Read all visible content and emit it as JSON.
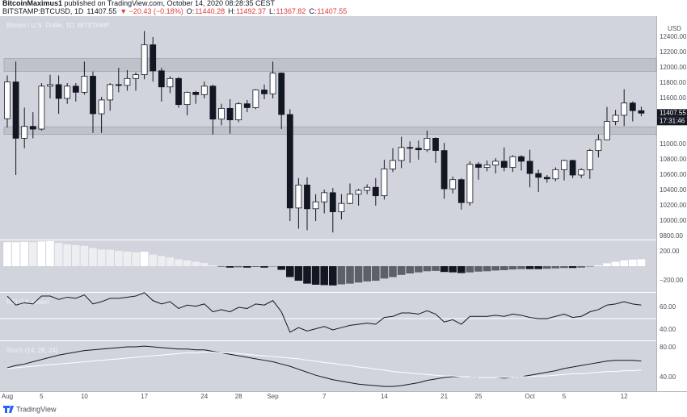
{
  "header": {
    "publisher": "BitcoinMaximus1",
    "published": " published on TradingView.com, October 14, 2020 08:28:35 CEST",
    "symbol": "BITSTAMP:BTCUSD, 1D",
    "price": "11407.55",
    "change": "▼ −20.43 (−0.18%)",
    "ohlc": [
      {
        "label": "O:",
        "value": "11440.28"
      },
      {
        "label": "H:",
        "value": "11492.37"
      },
      {
        "label": "L:",
        "value": "11367.82"
      },
      {
        "label": "C:",
        "value": "11407.55"
      }
    ]
  },
  "chart_data": [
    {
      "type": "candlestick",
      "title": "Bitcoin / U.S. Dollar, 1D, BITSTAMP",
      "axis_unit": "USD",
      "categories": [
        "Aug",
        null,
        null,
        null,
        "5",
        null,
        null,
        null,
        null,
        "10",
        null,
        null,
        null,
        null,
        null,
        null,
        "17",
        null,
        null,
        null,
        null,
        null,
        null,
        "24",
        null,
        null,
        null,
        "28",
        null,
        null,
        null,
        "Sep",
        null,
        null,
        null,
        null,
        null,
        "7",
        null,
        null,
        null,
        null,
        null,
        null,
        "14",
        null,
        null,
        null,
        null,
        null,
        null,
        "21",
        null,
        null,
        null,
        "25",
        null,
        null,
        null,
        null,
        null,
        "Oct",
        null,
        null,
        null,
        "5",
        null,
        null,
        null,
        null,
        null,
        null,
        "12",
        null,
        null
      ],
      "open": [
        11335,
        11815,
        11080,
        11235,
        11200,
        11760,
        11780,
        11600,
        11760,
        11680,
        11890,
        11400,
        11580,
        11780,
        11770,
        11860,
        11910,
        12300,
        11960,
        11750,
        11860,
        11520,
        11680,
        11650,
        11760,
        11330,
        11470,
        11320,
        11530,
        11480,
        11710,
        11660,
        11930,
        11390,
        10170,
        10470,
        10160,
        10250,
        10370,
        10120,
        10230,
        10350,
        10400,
        10440,
        10330,
        10680,
        10790,
        10960,
        10950,
        10930,
        11080,
        10920,
        10420,
        10540,
        10240,
        10740,
        10700,
        10730,
        10780,
        10700,
        10840,
        10780,
        10620,
        10570,
        10550,
        10670,
        10790,
        10600,
        10670,
        10920,
        11060,
        11300,
        11380,
        11540,
        11440.28
      ],
      "high": [
        11900,
        12080,
        11480,
        11420,
        11800,
        11910,
        11900,
        11800,
        11800,
        12080,
        11950,
        11620,
        11800,
        12000,
        11970,
        11940,
        12480,
        12400,
        12000,
        11890,
        11880,
        11690,
        11700,
        11820,
        11780,
        11530,
        11590,
        11550,
        11580,
        11720,
        11780,
        12080,
        11940,
        11460,
        10560,
        10570,
        10350,
        10410,
        10430,
        10350,
        10490,
        10420,
        10480,
        10560,
        10800,
        10950,
        11100,
        11040,
        11050,
        11180,
        11090,
        11020,
        10580,
        10560,
        10780,
        10770,
        10790,
        10820,
        10960,
        10860,
        10860,
        10930,
        10670,
        10600,
        10700,
        10800,
        10800,
        10690,
        10940,
        11130,
        11490,
        11450,
        11720,
        11560,
        11492.37
      ],
      "low": [
        11220,
        10600,
        10950,
        11080,
        11180,
        11600,
        11400,
        11530,
        11560,
        11650,
        11150,
        11150,
        11440,
        11680,
        11700,
        11700,
        11850,
        11820,
        11560,
        11670,
        11480,
        11380,
        11530,
        11600,
        11130,
        11250,
        11140,
        11290,
        11420,
        11460,
        11590,
        11600,
        11200,
        10000,
        9900,
        9880,
        10000,
        10100,
        9850,
        10020,
        10220,
        10200,
        10350,
        10200,
        10280,
        10640,
        10690,
        10760,
        10800,
        10900,
        10760,
        10290,
        10360,
        10150,
        10200,
        10540,
        10650,
        10620,
        10650,
        10640,
        10660,
        10440,
        10380,
        10500,
        10520,
        10530,
        10560,
        10560,
        10550,
        10830,
        11060,
        11250,
        11240,
        11300,
        11367.82
      ],
      "close": [
        11815,
        11080,
        11235,
        11200,
        11760,
        11780,
        11600,
        11760,
        11680,
        11890,
        11400,
        11580,
        11780,
        11770,
        11860,
        11910,
        12300,
        11960,
        11750,
        11860,
        11520,
        11680,
        11650,
        11760,
        11330,
        11470,
        11320,
        11530,
        11480,
        11710,
        11660,
        11930,
        11390,
        10170,
        10470,
        10160,
        10250,
        10370,
        10120,
        10230,
        10350,
        10400,
        10440,
        10330,
        10680,
        10790,
        10960,
        10950,
        10930,
        11080,
        10920,
        10420,
        10540,
        10240,
        10740,
        10700,
        10730,
        10780,
        10700,
        10840,
        10780,
        10620,
        10570,
        10550,
        10670,
        10790,
        10600,
        10670,
        10920,
        11060,
        11300,
        11380,
        11540,
        11440.28,
        11407.55
      ],
      "up_color": "#ffffff",
      "down_color": "#131722",
      "zones": [
        [
          11950,
          12120
        ],
        [
          11130,
          11230
        ]
      ],
      "last_price_label": "11407.55",
      "countdown": "17:31:46",
      "ylim": [
        9758,
        12674
      ],
      "yticks": [
        {
          "value": 9800,
          "label": "9800.00"
        },
        {
          "value": 10000,
          "label": "10000.00"
        },
        {
          "value": 10200,
          "label": "10200.00"
        },
        {
          "value": 10400,
          "label": "10400.00"
        },
        {
          "value": 10600,
          "label": "10600.00"
        },
        {
          "value": 10800,
          "label": "10800.00"
        },
        {
          "value": 11000,
          "label": "11000.00"
        },
        {
          "value": 11600,
          "label": "11600.00"
        },
        {
          "value": 11800,
          "label": "11800.00"
        },
        {
          "value": 12000,
          "label": "12000.00"
        },
        {
          "value": 12200,
          "label": "12200.00"
        },
        {
          "value": 12400,
          "label": "12400.00"
        }
      ]
    },
    {
      "type": "bar",
      "values": [
        330,
        330,
        335,
        330,
        340,
        345,
        320,
        300,
        290,
        280,
        250,
        230,
        225,
        210,
        200,
        190,
        200,
        160,
        140,
        120,
        95,
        80,
        60,
        45,
        10,
        -5,
        -20,
        -15,
        -20,
        -10,
        -20,
        -5,
        -50,
        -150,
        -200,
        -240,
        -255,
        -260,
        -265,
        -250,
        -240,
        -225,
        -210,
        -200,
        -170,
        -150,
        -120,
        -100,
        -85,
        -70,
        -65,
        -80,
        -85,
        -95,
        -85,
        -75,
        -70,
        -60,
        -55,
        -45,
        -40,
        -40,
        -40,
        -35,
        -30,
        -25,
        -25,
        -20,
        -5,
        10,
        40,
        60,
        80,
        90,
        95
      ],
      "ylim": [
        -355,
        355
      ],
      "yticks": [
        {
          "value": 200,
          "label": "200.00"
        },
        {
          "value": -200,
          "label": "−200.00"
        }
      ]
    },
    {
      "type": "line",
      "title": "RSI (14, close)",
      "color": "#131722",
      "levels": [
        50
      ],
      "values": [
        70,
        62,
        64,
        63,
        70,
        70,
        67,
        69,
        68,
        71,
        63,
        65,
        68,
        68,
        69,
        70,
        73,
        66,
        63,
        65,
        59,
        62,
        61,
        63,
        56,
        58,
        56,
        60,
        59,
        63,
        62,
        66,
        56,
        38,
        42,
        39,
        41,
        43,
        40,
        42,
        44,
        45,
        46,
        45,
        51,
        52,
        55,
        55,
        54,
        57,
        54,
        47,
        49,
        45,
        52,
        52,
        52,
        53,
        52,
        54,
        53,
        51,
        50,
        50,
        52,
        54,
        51,
        52,
        56,
        58,
        62,
        63,
        65,
        63,
        62
      ],
      "ylim": [
        30.7,
        72.9
      ],
      "yticks": [
        {
          "value": 60,
          "label": "60.00"
        },
        {
          "value": 40,
          "label": "40.00"
        }
      ]
    },
    {
      "type": "line",
      "title": "Stoch (14, 28, 24)",
      "series": [
        {
          "color": "#131722",
          "values": [
            53,
            56,
            58,
            61,
            64,
            67,
            70,
            72,
            74,
            76,
            77,
            78,
            79,
            80,
            81,
            81,
            82,
            81,
            80,
            79,
            78,
            78,
            77,
            77,
            75,
            73,
            71,
            69,
            67,
            65,
            63,
            61,
            58,
            55,
            51,
            47,
            43,
            40,
            37,
            35,
            33,
            31,
            30,
            29,
            28,
            28,
            29,
            31,
            33,
            36,
            38,
            40,
            41,
            41,
            41,
            40,
            40,
            40,
            39,
            40,
            41,
            43,
            45,
            47,
            49,
            52,
            54,
            56,
            58,
            60,
            62,
            63,
            63,
            63,
            62
          ]
        },
        {
          "color": "#ffffff",
          "values": [
            52,
            53,
            54,
            55,
            56,
            57,
            58,
            59,
            60,
            61,
            62,
            63,
            64,
            65,
            66,
            67,
            68,
            69,
            70,
            71,
            72,
            73,
            73,
            74,
            74,
            73,
            73,
            72,
            71,
            70,
            69,
            68,
            67,
            66,
            65,
            63,
            62,
            60,
            59,
            57,
            56,
            54,
            53,
            51,
            50,
            48,
            47,
            46,
            45,
            44,
            43,
            42,
            42,
            41,
            41,
            40,
            40,
            40,
            40,
            40,
            41,
            41,
            42,
            42,
            43,
            44,
            45,
            45,
            46,
            47,
            48,
            48,
            49,
            49,
            50
          ]
        }
      ],
      "ylim": [
        21.6,
        88.6
      ],
      "yticks": [
        {
          "value": 80,
          "label": "80.00"
        },
        {
          "value": 40,
          "label": "40.00"
        }
      ]
    }
  ],
  "footer": "TradingView"
}
